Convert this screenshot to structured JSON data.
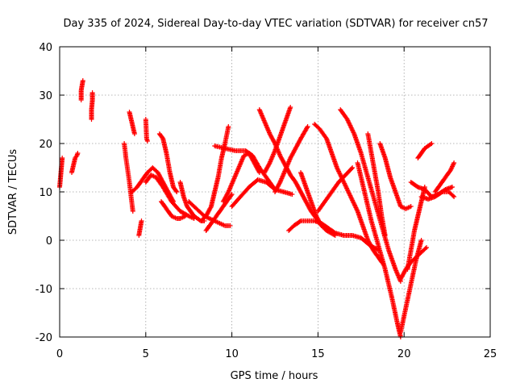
{
  "chart_data": {
    "type": "scatter",
    "title": "Day 335 of 2024, Sidereal Day-to-day VTEC variation (SDTVAR) for receiver cn57",
    "xlabel": "GPS time / hours",
    "ylabel": "SDTVAR / TECUs",
    "xlim": [
      0,
      25
    ],
    "ylim": [
      -20,
      40
    ],
    "xticks": [
      0,
      5,
      10,
      15,
      20,
      25
    ],
    "yticks": [
      -20,
      -10,
      0,
      10,
      20,
      30,
      40
    ],
    "xtick_labels": [
      "0",
      "5",
      "10",
      "15",
      "20",
      "25"
    ],
    "ytick_labels": [
      "-20",
      "-10",
      "0",
      "10",
      "20",
      "30",
      "40"
    ],
    "grid": true,
    "marker": "+",
    "color": "#ff0000",
    "series": [
      {
        "name": "s01",
        "x": [
          0.0,
          0.05,
          0.1,
          0.15
        ],
        "y": [
          11,
          13,
          15,
          17
        ]
      },
      {
        "name": "s02",
        "x": [
          0.7,
          0.8,
          0.9,
          1.0,
          1.05
        ],
        "y": [
          14,
          15.5,
          17,
          17.5,
          18
        ]
      },
      {
        "name": "s03",
        "x": [
          1.25,
          1.25,
          1.3,
          1.35
        ],
        "y": [
          29,
          31,
          32,
          33
        ]
      },
      {
        "name": "s04",
        "x": [
          1.85,
          1.85,
          1.9,
          1.9
        ],
        "y": [
          25,
          27,
          29,
          30.5
        ]
      },
      {
        "name": "s05",
        "x": [
          3.75,
          3.85,
          3.95,
          4.05,
          4.15,
          4.25
        ],
        "y": [
          20,
          17,
          14.5,
          12,
          9,
          6
        ]
      },
      {
        "name": "s06",
        "x": [
          4.05,
          4.15,
          4.25,
          4.35
        ],
        "y": [
          26.5,
          25,
          23.5,
          22
        ]
      },
      {
        "name": "s07",
        "x": [
          4.6,
          4.65,
          4.7,
          4.75
        ],
        "y": [
          1,
          2,
          3,
          4
        ]
      },
      {
        "name": "s08",
        "x": [
          5.0,
          5.05,
          5.1
        ],
        "y": [
          25,
          21,
          20.5
        ]
      },
      {
        "name": "s09",
        "x": [
          4.2,
          4.5,
          4.8,
          5.1,
          5.4,
          5.7,
          6.0,
          6.3,
          6.6
        ],
        "y": [
          10,
          11,
          12.5,
          14,
          15,
          14,
          12,
          10,
          8
        ]
      },
      {
        "name": "s10",
        "x": [
          5.0,
          5.3,
          5.6,
          6.0,
          6.5,
          7.0,
          7.5,
          7.8
        ],
        "y": [
          12,
          13.5,
          13,
          11,
          8,
          6,
          5,
          4.5
        ]
      },
      {
        "name": "s11",
        "x": [
          5.8,
          6.0,
          6.2,
          6.4,
          6.6,
          6.8
        ],
        "y": [
          22,
          21,
          18,
          14,
          11,
          10
        ]
      },
      {
        "name": "s12",
        "x": [
          5.9,
          6.2,
          6.5,
          6.8,
          7.0,
          7.3
        ],
        "y": [
          8,
          6.5,
          5,
          4.5,
          4.5,
          5
        ]
      },
      {
        "name": "s13",
        "x": [
          7.0,
          7.2,
          7.4,
          7.6,
          7.8,
          8.0,
          8.2,
          8.4
        ],
        "y": [
          12,
          9,
          7,
          6,
          5,
          4.5,
          4,
          4
        ]
      },
      {
        "name": "s14",
        "x": [
          7.5,
          7.8,
          8.1,
          8.4,
          8.7,
          9.0,
          9.3,
          9.6,
          9.9
        ],
        "y": [
          8,
          7,
          6,
          5,
          4.5,
          4,
          3.5,
          3,
          3
        ]
      },
      {
        "name": "s15",
        "x": [
          8.2,
          8.5,
          8.8,
          9.0,
          9.2,
          9.4,
          9.6,
          9.8
        ],
        "y": [
          4,
          5,
          7,
          10,
          13,
          17,
          20,
          23.5
        ]
      },
      {
        "name": "s16",
        "x": [
          8.5,
          8.8,
          9.1,
          9.4,
          9.7,
          10.0
        ],
        "y": [
          2,
          3.5,
          5,
          6.5,
          8,
          9.5
        ]
      },
      {
        "name": "s17",
        "x": [
          9.0,
          9.6,
          10.2,
          10.8,
          11.2,
          11.6,
          12.0,
          12.4
        ],
        "y": [
          19.5,
          19,
          18.5,
          18.5,
          17.5,
          15,
          13,
          11
        ]
      },
      {
        "name": "s18",
        "x": [
          9.5,
          9.8,
          10.1,
          10.4,
          10.7,
          11.0,
          11.3,
          11.6
        ],
        "y": [
          8,
          10,
          12.5,
          15,
          17.5,
          18,
          16,
          14
        ]
      },
      {
        "name": "s19",
        "x": [
          10.0,
          10.5,
          11.0,
          11.5,
          12.0,
          12.5,
          13.0,
          13.5
        ],
        "y": [
          7,
          9,
          11,
          12.5,
          12,
          10.5,
          10,
          9.5
        ]
      },
      {
        "name": "s20",
        "x": [
          11.6,
          11.9,
          12.2,
          12.5,
          12.8,
          13.1,
          13.4,
          13.7,
          14.0,
          14.3,
          14.6,
          15.0,
          15.5,
          16.0
        ],
        "y": [
          27,
          24.5,
          22,
          20,
          17.5,
          15.5,
          13.5,
          12,
          10,
          8,
          6,
          4,
          2,
          1
        ]
      },
      {
        "name": "s21",
        "x": [
          11.9,
          12.2,
          12.5,
          12.8,
          13.1,
          13.4
        ],
        "y": [
          14,
          16,
          18.5,
          21.5,
          24.5,
          27.5
        ]
      },
      {
        "name": "s22",
        "x": [
          12.5,
          12.8,
          13.1,
          13.4,
          13.7,
          14.0,
          14.4
        ],
        "y": [
          10,
          12,
          14.5,
          17,
          19,
          21,
          23.5
        ]
      },
      {
        "name": "s23",
        "x": [
          13.3,
          13.6,
          14.0,
          14.4,
          14.8,
          15.2,
          15.6,
          16.0,
          16.5,
          17.0,
          17.5,
          18.0,
          18.5
        ],
        "y": [
          2,
          3,
          4,
          4,
          4,
          3.5,
          2.5,
          1.5,
          1,
          1,
          0.5,
          -1,
          -2
        ]
      },
      {
        "name": "s24",
        "x": [
          14.0,
          14.3,
          14.6,
          14.9,
          15.2,
          15.5
        ],
        "y": [
          14,
          11,
          8,
          5,
          3,
          2
        ]
      },
      {
        "name": "s25",
        "x": [
          14.8,
          15.1,
          15.5,
          15.8,
          16.1,
          16.5,
          16.9,
          17.3,
          17.6,
          17.9,
          18.2,
          18.5,
          18.8
        ],
        "y": [
          24,
          23,
          21,
          18,
          15,
          12,
          9,
          6,
          3,
          0,
          -2,
          -3.5,
          -5
        ]
      },
      {
        "name": "s26",
        "x": [
          15.0,
          15.4,
          15.8,
          16.2,
          16.6,
          17.0
        ],
        "y": [
          6,
          8,
          10,
          12,
          13.5,
          15
        ]
      },
      {
        "name": "s27",
        "x": [
          16.3,
          16.7,
          17.1,
          17.5,
          17.9,
          18.3,
          18.7,
          19.1,
          19.5,
          19.8
        ],
        "y": [
          27,
          25,
          22,
          18,
          13,
          8,
          3,
          -2,
          -6,
          -8.5
        ]
      },
      {
        "name": "s28",
        "x": [
          17.3,
          17.7,
          18.1,
          18.5,
          18.9,
          19.3,
          19.6,
          19.8
        ],
        "y": [
          16,
          10,
          4,
          -1,
          -6,
          -12,
          -17,
          -20
        ]
      },
      {
        "name": "s29",
        "x": [
          17.9,
          18.1,
          18.3,
          18.5,
          18.7,
          18.9
        ],
        "y": [
          22,
          18,
          14,
          10,
          5,
          1
        ]
      },
      {
        "name": "s30",
        "x": [
          18.6,
          18.9,
          19.2,
          19.5,
          19.8,
          20.1,
          20.4
        ],
        "y": [
          20,
          17,
          13,
          10,
          7,
          6.5,
          7
        ]
      },
      {
        "name": "s31",
        "x": [
          19.8,
          20.1,
          20.4,
          20.7,
          21.0
        ],
        "y": [
          -19,
          -14,
          -9,
          -4,
          0
        ]
      },
      {
        "name": "s32",
        "x": [
          19.8,
          20.1,
          20.4,
          20.7,
          21.0,
          21.3
        ],
        "y": [
          -8,
          -6,
          -4.5,
          -3.5,
          -2.5,
          -1.5
        ]
      },
      {
        "name": "s33",
        "x": [
          20.2,
          20.4,
          20.6,
          20.8,
          21.0,
          21.2
        ],
        "y": [
          -6,
          -2,
          2,
          5,
          8,
          11
        ]
      },
      {
        "name": "s34",
        "x": [
          20.4,
          20.8,
          21.2,
          21.6,
          22.0,
          22.4,
          22.8
        ],
        "y": [
          12,
          11,
          10.5,
          9,
          9.5,
          10.5,
          11
        ]
      },
      {
        "name": "s35",
        "x": [
          20.8,
          21.0,
          21.2,
          21.4,
          21.6
        ],
        "y": [
          17,
          18,
          19,
          19.5,
          20
        ]
      },
      {
        "name": "s36",
        "x": [
          21.0,
          21.4,
          21.8,
          22.2,
          22.6,
          22.9
        ],
        "y": [
          9,
          8.5,
          9,
          10,
          10,
          9
        ]
      },
      {
        "name": "s37",
        "x": [
          21.8,
          22.1,
          22.4,
          22.7,
          22.9
        ],
        "y": [
          10,
          11.5,
          13,
          14.5,
          16
        ]
      }
    ]
  }
}
